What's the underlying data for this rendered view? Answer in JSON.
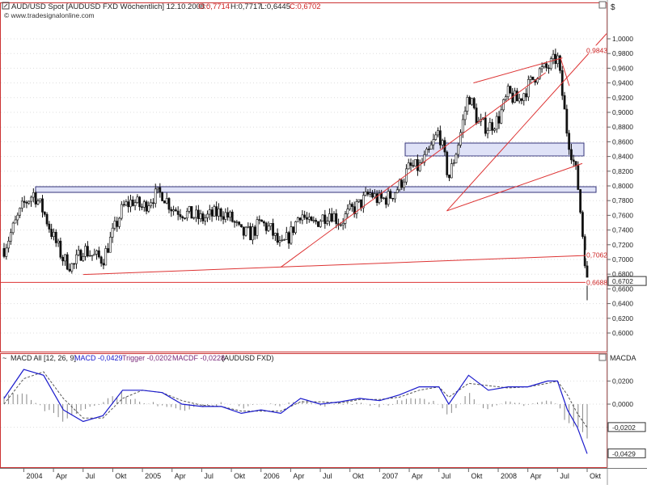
{
  "header": {
    "title_line": "AUD/USD Spot [AUDUSD FXD  Wöchentlich] 12.10.2008 :",
    "open": "O:0,7714",
    "high": "H:0,7717",
    "low": "L:0,6445",
    "close": "C:0,6702",
    "watermark": "© www.tradesignalonline.com",
    "currency_label": "$",
    "icon_top": "chart-type-icon"
  },
  "price_axis": {
    "ticks": [
      "1,0000",
      "0,9800",
      "0,9600",
      "0,9400",
      "0,9200",
      "0,9000",
      "0,8800",
      "0,8600",
      "0,8400",
      "0,8200",
      "0,8000",
      "0,7800",
      "0,7600",
      "0,7400",
      "0,7200",
      "0,7000",
      "0,6800",
      "0,6600",
      "0,6400",
      "0,6200",
      "0,6000"
    ],
    "last_price": "0,6702"
  },
  "macd_panel": {
    "title": "MACD All [12, 26, 9]",
    "macd_label": "MACD -0,0429",
    "trigger_label": "Trigger -0,0202",
    "macdf_label": "MACDF -0,0228",
    "symbol_label": "(AUDUSD FXD)",
    "axis_title": "MACDA",
    "ticks": [
      "0,0200",
      "0,0000",
      "-0,0200"
    ],
    "trigger_box": "-0,0202",
    "macd_box": "-0,0429",
    "colors": {
      "macd": "#1a1acc",
      "trigger": "#555555",
      "hist": "#888888"
    }
  },
  "time_axis": {
    "labels": [
      "2004",
      "Apr",
      "Jul",
      "Okt",
      "2005",
      "Apr",
      "Jul",
      "Okt",
      "2006",
      "Apr",
      "Jul",
      "Okt",
      "2007",
      "Apr",
      "Jul",
      "Okt",
      "2008",
      "Apr",
      "Jul",
      "Okt"
    ]
  },
  "annotations": {
    "upper_level": "0,9843",
    "mid_level": "0,7062",
    "low_level": "0,6688"
  },
  "chart_data": {
    "type": "candlestick",
    "title": "AUD/USD Spot [AUDUSD FXD Wöchentlich]",
    "xlabel": "",
    "ylabel": "$",
    "ylim": [
      0.58,
      1.02
    ],
    "x_range": [
      "2003-11",
      "2008-10"
    ],
    "close_path": [
      {
        "x": "2003-11",
        "y": 0.715
      },
      {
        "x": "2003-12",
        "y": 0.745
      },
      {
        "x": "2004-01",
        "y": 0.775
      },
      {
        "x": "2004-02",
        "y": 0.79
      },
      {
        "x": "2004-03",
        "y": 0.765
      },
      {
        "x": "2004-04",
        "y": 0.73
      },
      {
        "x": "2004-05",
        "y": 0.7
      },
      {
        "x": "2004-06",
        "y": 0.69
      },
      {
        "x": "2004-07",
        "y": 0.715
      },
      {
        "x": "2004-08",
        "y": 0.705
      },
      {
        "x": "2004-09",
        "y": 0.7
      },
      {
        "x": "2004-10",
        "y": 0.735
      },
      {
        "x": "2004-11",
        "y": 0.77
      },
      {
        "x": "2004-12",
        "y": 0.78
      },
      {
        "x": "2005-01",
        "y": 0.77
      },
      {
        "x": "2005-02",
        "y": 0.785
      },
      {
        "x": "2005-03",
        "y": 0.79
      },
      {
        "x": "2005-04",
        "y": 0.77
      },
      {
        "x": "2005-05",
        "y": 0.765
      },
      {
        "x": "2005-06",
        "y": 0.76
      },
      {
        "x": "2005-07",
        "y": 0.755
      },
      {
        "x": "2005-08",
        "y": 0.76
      },
      {
        "x": "2005-09",
        "y": 0.765
      },
      {
        "x": "2005-10",
        "y": 0.755
      },
      {
        "x": "2005-11",
        "y": 0.735
      },
      {
        "x": "2005-12",
        "y": 0.735
      },
      {
        "x": "2006-01",
        "y": 0.75
      },
      {
        "x": "2006-02",
        "y": 0.74
      },
      {
        "x": "2006-03",
        "y": 0.715
      },
      {
        "x": "2006-04",
        "y": 0.735
      },
      {
        "x": "2006-05",
        "y": 0.765
      },
      {
        "x": "2006-06",
        "y": 0.745
      },
      {
        "x": "2006-07",
        "y": 0.755
      },
      {
        "x": "2006-08",
        "y": 0.765
      },
      {
        "x": "2006-09",
        "y": 0.75
      },
      {
        "x": "2006-10",
        "y": 0.765
      },
      {
        "x": "2006-11",
        "y": 0.775
      },
      {
        "x": "2006-12",
        "y": 0.79
      },
      {
        "x": "2007-01",
        "y": 0.78
      },
      {
        "x": "2007-02",
        "y": 0.785
      },
      {
        "x": "2007-03",
        "y": 0.8
      },
      {
        "x": "2007-04",
        "y": 0.825
      },
      {
        "x": "2007-05",
        "y": 0.825
      },
      {
        "x": "2007-06",
        "y": 0.845
      },
      {
        "x": "2007-07",
        "y": 0.875
      },
      {
        "x": "2007-08",
        "y": 0.81
      },
      {
        "x": "2007-09",
        "y": 0.86
      },
      {
        "x": "2007-10",
        "y": 0.925
      },
      {
        "x": "2007-11",
        "y": 0.885
      },
      {
        "x": "2007-12",
        "y": 0.88
      },
      {
        "x": "2008-01",
        "y": 0.89
      },
      {
        "x": "2008-02",
        "y": 0.925
      },
      {
        "x": "2008-03",
        "y": 0.915
      },
      {
        "x": "2008-04",
        "y": 0.935
      },
      {
        "x": "2008-05",
        "y": 0.955
      },
      {
        "x": "2008-06",
        "y": 0.96
      },
      {
        "x": "2008-07",
        "y": 0.975
      },
      {
        "x": "2008-08",
        "y": 0.87
      },
      {
        "x": "2008-09",
        "y": 0.81
      },
      {
        "x": "2008-10",
        "y": 0.67
      }
    ],
    "indicators": {
      "macd_line": [
        {
          "x": "2003-11",
          "y": 0.005
        },
        {
          "x": "2004-01",
          "y": 0.03
        },
        {
          "x": "2004-03",
          "y": 0.025
        },
        {
          "x": "2004-05",
          "y": -0.005
        },
        {
          "x": "2004-07",
          "y": -0.015
        },
        {
          "x": "2004-09",
          "y": -0.01
        },
        {
          "x": "2004-11",
          "y": 0.012
        },
        {
          "x": "2005-01",
          "y": 0.012
        },
        {
          "x": "2005-03",
          "y": 0.01
        },
        {
          "x": "2005-05",
          "y": 0.0
        },
        {
          "x": "2005-07",
          "y": -0.002
        },
        {
          "x": "2005-09",
          "y": -0.002
        },
        {
          "x": "2005-11",
          "y": -0.008
        },
        {
          "x": "2006-01",
          "y": -0.005
        },
        {
          "x": "2006-03",
          "y": -0.008
        },
        {
          "x": "2006-05",
          "y": 0.005
        },
        {
          "x": "2006-07",
          "y": 0.0
        },
        {
          "x": "2006-09",
          "y": 0.002
        },
        {
          "x": "2006-11",
          "y": 0.005
        },
        {
          "x": "2007-01",
          "y": 0.003
        },
        {
          "x": "2007-03",
          "y": 0.008
        },
        {
          "x": "2007-05",
          "y": 0.015
        },
        {
          "x": "2007-07",
          "y": 0.015
        },
        {
          "x": "2007-08",
          "y": 0.0
        },
        {
          "x": "2007-10",
          "y": 0.025
        },
        {
          "x": "2007-12",
          "y": 0.012
        },
        {
          "x": "2008-02",
          "y": 0.015
        },
        {
          "x": "2008-04",
          "y": 0.015
        },
        {
          "x": "2008-06",
          "y": 0.02
        },
        {
          "x": "2008-07",
          "y": 0.02
        },
        {
          "x": "2008-08",
          "y": -0.005
        },
        {
          "x": "2008-09",
          "y": -0.02
        },
        {
          "x": "2008-10",
          "y": -0.0429
        }
      ],
      "trigger_line": [
        {
          "x": "2003-11",
          "y": 0.0
        },
        {
          "x": "2004-01",
          "y": 0.022
        },
        {
          "x": "2004-03",
          "y": 0.028
        },
        {
          "x": "2004-05",
          "y": 0.005
        },
        {
          "x": "2004-07",
          "y": -0.012
        },
        {
          "x": "2004-09",
          "y": -0.012
        },
        {
          "x": "2004-11",
          "y": 0.005
        },
        {
          "x": "2005-01",
          "y": 0.012
        },
        {
          "x": "2005-03",
          "y": 0.01
        },
        {
          "x": "2005-05",
          "y": 0.003
        },
        {
          "x": "2005-07",
          "y": -0.001
        },
        {
          "x": "2005-09",
          "y": -0.002
        },
        {
          "x": "2005-11",
          "y": -0.006
        },
        {
          "x": "2006-01",
          "y": -0.006
        },
        {
          "x": "2006-03",
          "y": -0.006
        },
        {
          "x": "2006-05",
          "y": 0.002
        },
        {
          "x": "2006-07",
          "y": 0.002
        },
        {
          "x": "2006-09",
          "y": 0.001
        },
        {
          "x": "2006-11",
          "y": 0.004
        },
        {
          "x": "2007-01",
          "y": 0.004
        },
        {
          "x": "2007-03",
          "y": 0.006
        },
        {
          "x": "2007-05",
          "y": 0.012
        },
        {
          "x": "2007-07",
          "y": 0.015
        },
        {
          "x": "2007-08",
          "y": 0.006
        },
        {
          "x": "2007-10",
          "y": 0.018
        },
        {
          "x": "2007-12",
          "y": 0.016
        },
        {
          "x": "2008-02",
          "y": 0.014
        },
        {
          "x": "2008-04",
          "y": 0.015
        },
        {
          "x": "2008-06",
          "y": 0.018
        },
        {
          "x": "2008-07",
          "y": 0.02
        },
        {
          "x": "2008-08",
          "y": 0.008
        },
        {
          "x": "2008-09",
          "y": -0.008
        },
        {
          "x": "2008-10",
          "y": -0.0202
        }
      ]
    }
  }
}
